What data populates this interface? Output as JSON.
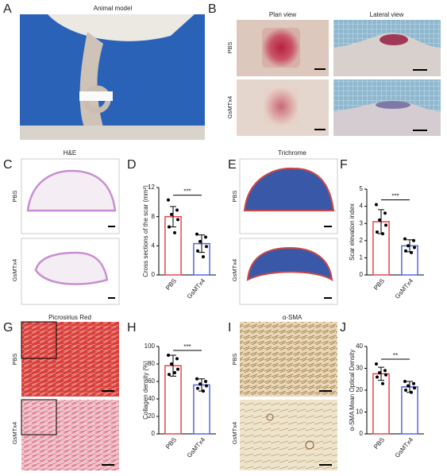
{
  "panels": {
    "a": {
      "letter": "A",
      "title": "Animal model"
    },
    "b": {
      "letter": "B",
      "columns": [
        "Plan view",
        "Lateral view"
      ],
      "rows": [
        "PBS",
        "GsMTx4"
      ]
    },
    "c": {
      "letter": "C",
      "title": "H&E",
      "rows": [
        "PBS",
        "GsMTx4"
      ]
    },
    "d": {
      "letter": "D"
    },
    "e": {
      "letter": "E",
      "title": "Trichrome",
      "rows": [
        "PBS",
        "GsMTx4"
      ]
    },
    "f": {
      "letter": "F"
    },
    "g": {
      "letter": "G",
      "title": "Picrosirius Red",
      "rows": [
        "PBS",
        "GsMTx4"
      ]
    },
    "h": {
      "letter": "H"
    },
    "i": {
      "letter": "I",
      "title": "α-SMA",
      "rows": [
        "PBS",
        "GsMTx4"
      ]
    },
    "j": {
      "letter": "J"
    }
  },
  "chart_data": [
    {
      "type": "bar",
      "y_label": "Cross sections of the scar (mm²)",
      "categories": [
        "PBS",
        "GsMTx4"
      ],
      "colors": [
        "#e8474a",
        "#5468e0"
      ],
      "values": [
        8.0,
        4.3
      ],
      "errors": [
        1.4,
        1.2
      ],
      "points": [
        [
          10.3,
          8.9,
          8.3,
          7.6,
          6.6,
          5.8
        ],
        [
          5.6,
          5.2,
          4.6,
          3.9,
          3.3,
          2.5
        ]
      ],
      "ylim": [
        0,
        12
      ],
      "yticks": [
        0,
        4,
        8,
        12
      ],
      "significance": "***"
    },
    {
      "type": "bar",
      "y_label": "Scar elevation index",
      "categories": [
        "PBS",
        "GsMTx4"
      ],
      "colors": [
        "#e8474a",
        "#5468e0"
      ],
      "values": [
        3.1,
        1.7
      ],
      "errors": [
        0.7,
        0.35
      ],
      "points": [
        [
          4.1,
          3.6,
          3.2,
          2.9,
          2.5,
          2.4
        ],
        [
          2.1,
          2.0,
          1.7,
          1.6,
          1.4,
          1.3
        ]
      ],
      "ylim": [
        0,
        5
      ],
      "yticks": [
        0,
        1,
        2,
        3,
        4,
        5
      ],
      "significance": "***"
    },
    {
      "type": "bar",
      "y_label": "Collagen density (%)",
      "categories": [
        "PBS",
        "GsMTx4"
      ],
      "colors": [
        "#e8474a",
        "#5468e0"
      ],
      "values": [
        78,
        56
      ],
      "errors": [
        12,
        7
      ],
      "points": [
        [
          90,
          86,
          80,
          74,
          68,
          70
        ],
        [
          63,
          60,
          57,
          55,
          52,
          49
        ]
      ],
      "ylim": [
        0,
        100
      ],
      "yticks": [
        0,
        20,
        40,
        60,
        80,
        100
      ],
      "significance": "***"
    },
    {
      "type": "bar",
      "y_label": "α-SMA Mean Optical Density",
      "categories": [
        "PBS",
        "GsMTx4"
      ],
      "colors": [
        "#e8474a",
        "#5468e0"
      ],
      "values": [
        27.5,
        21.5
      ],
      "errors": [
        3,
        2.5
      ],
      "points": [
        [
          32,
          29,
          28,
          27,
          26,
          23
        ],
        [
          24,
          23,
          22,
          21,
          20,
          19
        ]
      ],
      "ylim": [
        0,
        40
      ],
      "yticks": [
        0,
        10,
        20,
        30,
        40
      ],
      "significance": "**"
    }
  ]
}
